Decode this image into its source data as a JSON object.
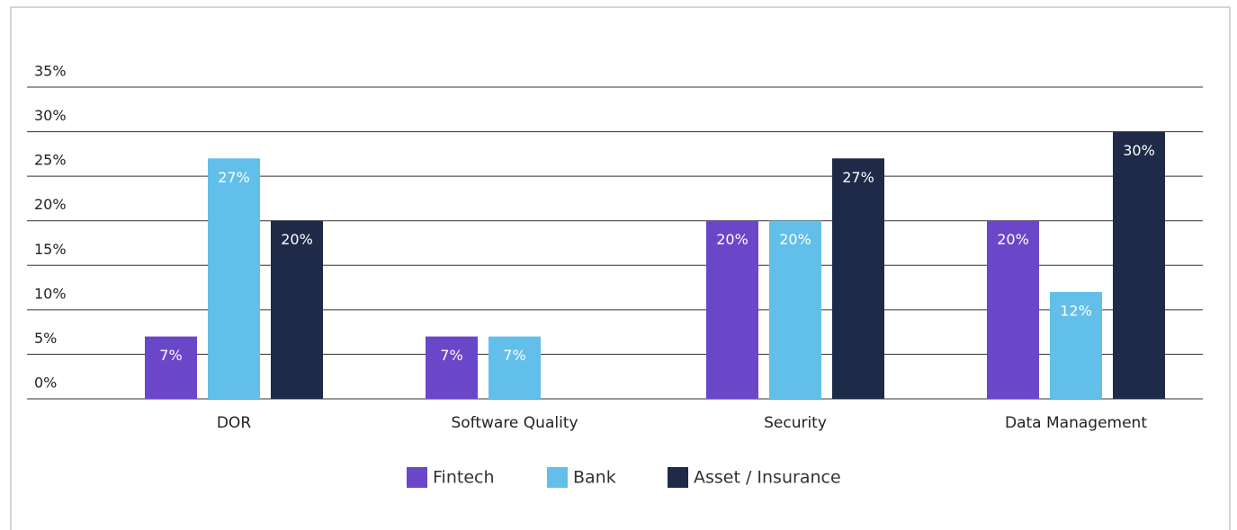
{
  "chart_data": {
    "type": "bar",
    "categories": [
      "DOR",
      "Software Quality",
      "Security",
      "Data Management"
    ],
    "series": [
      {
        "name": "Fintech",
        "color": "#6a46c8",
        "values": [
          7,
          7,
          20,
          20
        ],
        "value_labels": [
          "7%",
          "7%",
          "20%",
          "20%"
        ]
      },
      {
        "name": "Bank",
        "color": "#62bfea",
        "values": [
          27,
          7,
          20,
          12
        ],
        "value_labels": [
          "27%",
          "7%",
          "20%",
          "12%"
        ]
      },
      {
        "name": "Asset / Insurance",
        "color": "#1e2a47",
        "values": [
          20,
          null,
          27,
          30
        ],
        "value_labels": [
          "20%",
          null,
          "27%",
          "30%"
        ]
      }
    ],
    "ylim": [
      0,
      35
    ],
    "yticks": [
      {
        "value": 0,
        "label": "0%"
      },
      {
        "value": 5,
        "label": "5%"
      },
      {
        "value": 10,
        "label": "10%"
      },
      {
        "value": 15,
        "label": "15%"
      },
      {
        "value": 20,
        "label": "20%"
      },
      {
        "value": 25,
        "label": "25%"
      },
      {
        "value": 30,
        "label": "30%"
      },
      {
        "value": 35,
        "label": "35%"
      }
    ],
    "grid": true,
    "legend": "bottom"
  }
}
